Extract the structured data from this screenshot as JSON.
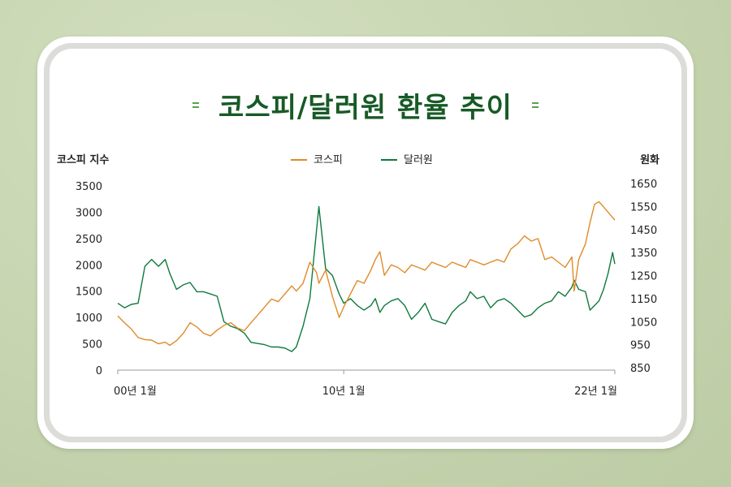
{
  "title": "코스피/달러원 환율 추이",
  "colors": {
    "kospi": "#e08b2a",
    "usdkrw": "#0f7a3c",
    "title": "#185a26",
    "accent": "#5aa14d"
  },
  "chart_data": {
    "type": "line",
    "title": "코스피/달러원 환율 추이",
    "y_left_label": "코스피 지수",
    "y_right_label": "원화",
    "y_left_ticks": [
      "3500",
      "3000",
      "2500",
      "2000",
      "1500",
      "1000",
      "500",
      "0"
    ],
    "y_right_ticks": [
      "1650",
      "1550",
      "1450",
      "1350",
      "1250",
      "1150",
      "1050",
      "950",
      "850"
    ],
    "x_ticks": [
      "00년 1월",
      "10년 1월",
      "22년 1월"
    ],
    "ylim_left": [
      0,
      3500
    ],
    "ylim_right": [
      850,
      1650
    ],
    "xlim": [
      2000.0,
      2022.0
    ],
    "grid": false,
    "legend_position": "top-center",
    "series": [
      {
        "name": "코스피",
        "axis": "left",
        "x": [
          2000.0,
          2000.3,
          2000.6,
          2000.9,
          2001.2,
          2001.5,
          2001.8,
          2002.1,
          2002.3,
          2002.6,
          2002.9,
          2003.2,
          2003.5,
          2003.8,
          2004.1,
          2004.4,
          2004.7,
          2005.0,
          2005.3,
          2005.6,
          2005.9,
          2006.2,
          2006.5,
          2006.8,
          2007.1,
          2007.4,
          2007.7,
          2007.9,
          2008.2,
          2008.5,
          2008.8,
          2008.9,
          2009.2,
          2009.5,
          2009.8,
          2010.0,
          2010.3,
          2010.6,
          2010.9,
          2011.2,
          2011.4,
          2011.6,
          2011.8,
          2012.1,
          2012.4,
          2012.7,
          2013.0,
          2013.3,
          2013.6,
          2013.9,
          2014.2,
          2014.5,
          2014.8,
          2015.1,
          2015.4,
          2015.6,
          2015.9,
          2016.2,
          2016.5,
          2016.8,
          2017.1,
          2017.4,
          2017.7,
          2018.0,
          2018.3,
          2018.6,
          2018.9,
          2019.2,
          2019.5,
          2019.8,
          2020.1,
          2020.2,
          2020.4,
          2020.7,
          2020.9,
          2021.1,
          2021.3,
          2021.5,
          2021.7,
          2021.9,
          2022.0
        ],
        "values": [
          1030,
          900,
          780,
          620,
          580,
          570,
          500,
          530,
          470,
          560,
          700,
          900,
          820,
          700,
          650,
          760,
          850,
          900,
          800,
          750,
          900,
          1050,
          1200,
          1350,
          1300,
          1450,
          1600,
          1500,
          1650,
          2050,
          1850,
          1650,
          1900,
          1400,
          1000,
          1200,
          1450,
          1700,
          1650,
          1900,
          2100,
          2250,
          1800,
          2000,
          1950,
          1850,
          2000,
          1950,
          1900,
          2050,
          2000,
          1950,
          2050,
          2000,
          1950,
          2100,
          2050,
          2000,
          2050,
          2100,
          2050,
          2300,
          2400,
          2550,
          2450,
          2500,
          2100,
          2150,
          2050,
          1950,
          2150,
          1500,
          2100,
          2400,
          2800,
          3150,
          3200,
          3100,
          3000,
          2900,
          2850
        ]
      },
      {
        "name": "달러원",
        "axis": "right",
        "x": [
          2000.0,
          2000.3,
          2000.6,
          2000.9,
          2001.2,
          2001.5,
          2001.8,
          2002.1,
          2002.3,
          2002.6,
          2002.9,
          2003.2,
          2003.5,
          2003.8,
          2004.1,
          2004.4,
          2004.7,
          2005.0,
          2005.3,
          2005.6,
          2005.9,
          2006.2,
          2006.5,
          2006.8,
          2007.1,
          2007.4,
          2007.7,
          2007.9,
          2008.2,
          2008.5,
          2008.8,
          2008.9,
          2009.2,
          2009.5,
          2009.8,
          2010.0,
          2010.3,
          2010.6,
          2010.9,
          2011.2,
          2011.4,
          2011.6,
          2011.8,
          2012.1,
          2012.4,
          2012.7,
          2013.0,
          2013.3,
          2013.6,
          2013.9,
          2014.2,
          2014.5,
          2014.8,
          2015.1,
          2015.4,
          2015.6,
          2015.9,
          2016.2,
          2016.5,
          2016.8,
          2017.1,
          2017.4,
          2017.7,
          2018.0,
          2018.3,
          2018.6,
          2018.9,
          2019.2,
          2019.5,
          2019.8,
          2020.1,
          2020.2,
          2020.4,
          2020.7,
          2020.9,
          2021.1,
          2021.3,
          2021.5,
          2021.7,
          2021.9,
          2022.0
        ],
        "values": [
          1130,
          1110,
          1125,
          1130,
          1290,
          1320,
          1290,
          1320,
          1260,
          1190,
          1210,
          1220,
          1180,
          1180,
          1170,
          1160,
          1050,
          1030,
          1020,
          1000,
          960,
          955,
          950,
          940,
          940,
          935,
          920,
          940,
          1030,
          1150,
          1450,
          1550,
          1280,
          1250,
          1170,
          1130,
          1150,
          1120,
          1100,
          1120,
          1150,
          1090,
          1120,
          1140,
          1150,
          1120,
          1060,
          1090,
          1130,
          1060,
          1050,
          1040,
          1090,
          1120,
          1140,
          1180,
          1150,
          1160,
          1110,
          1140,
          1150,
          1130,
          1100,
          1070,
          1080,
          1110,
          1130,
          1140,
          1180,
          1160,
          1200,
          1230,
          1190,
          1180,
          1100,
          1120,
          1140,
          1190,
          1260,
          1350,
          1300
        ]
      }
    ]
  }
}
